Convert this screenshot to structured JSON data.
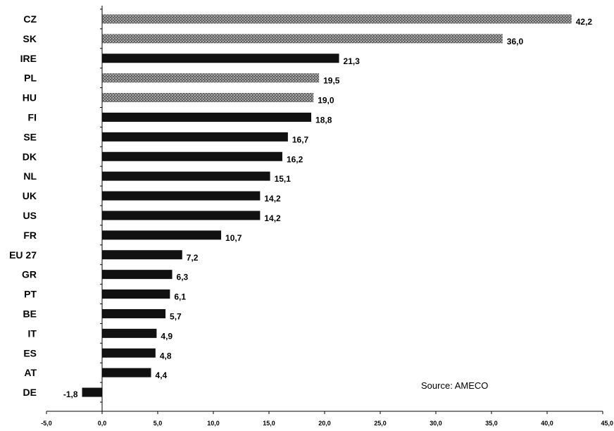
{
  "chart_data": {
    "type": "bar",
    "orientation": "horizontal",
    "categories": [
      "CZ",
      "SK",
      "IRE",
      "PL",
      "HU",
      "FI",
      "SE",
      "DK",
      "NL",
      "UK",
      "US",
      "FR",
      "EU 27",
      "GR",
      "PT",
      "BE",
      "IT",
      "ES",
      "AT",
      "DE"
    ],
    "values": [
      42.2,
      36.0,
      21.3,
      19.5,
      19.0,
      18.8,
      16.7,
      16.2,
      15.1,
      14.2,
      14.2,
      10.7,
      7.2,
      6.3,
      6.1,
      5.7,
      4.9,
      4.8,
      4.4,
      -1.8
    ],
    "value_labels": [
      "42,2",
      "36,0",
      "21,3",
      "19,5",
      "19,0",
      "18,8",
      "16,7",
      "16,2",
      "15,1",
      "14,2",
      "14,2",
      "10,7",
      "7,2",
      "6,3",
      "6,1",
      "5,7",
      "4,9",
      "4,8",
      "4,4",
      "-1,8"
    ],
    "patterned": [
      true,
      true,
      false,
      true,
      true,
      false,
      false,
      false,
      false,
      false,
      false,
      false,
      false,
      false,
      false,
      false,
      false,
      false,
      false,
      false
    ],
    "xlim": [
      -5,
      45
    ],
    "ticks": [
      -5,
      0,
      5,
      10,
      15,
      20,
      25,
      30,
      35,
      40,
      45
    ],
    "tick_labels": [
      "-5,0",
      "0,0",
      "5,0",
      "10,0",
      "15,0",
      "20,0",
      "25,0",
      "30,0",
      "35,0",
      "40,0",
      "45,0"
    ],
    "grid": false,
    "colors": {
      "solid": "#111111",
      "pattern_dark": "#3a3a3a",
      "pattern_light": "#a8a8a8"
    },
    "annotations": [
      "Source: AMECO"
    ]
  }
}
